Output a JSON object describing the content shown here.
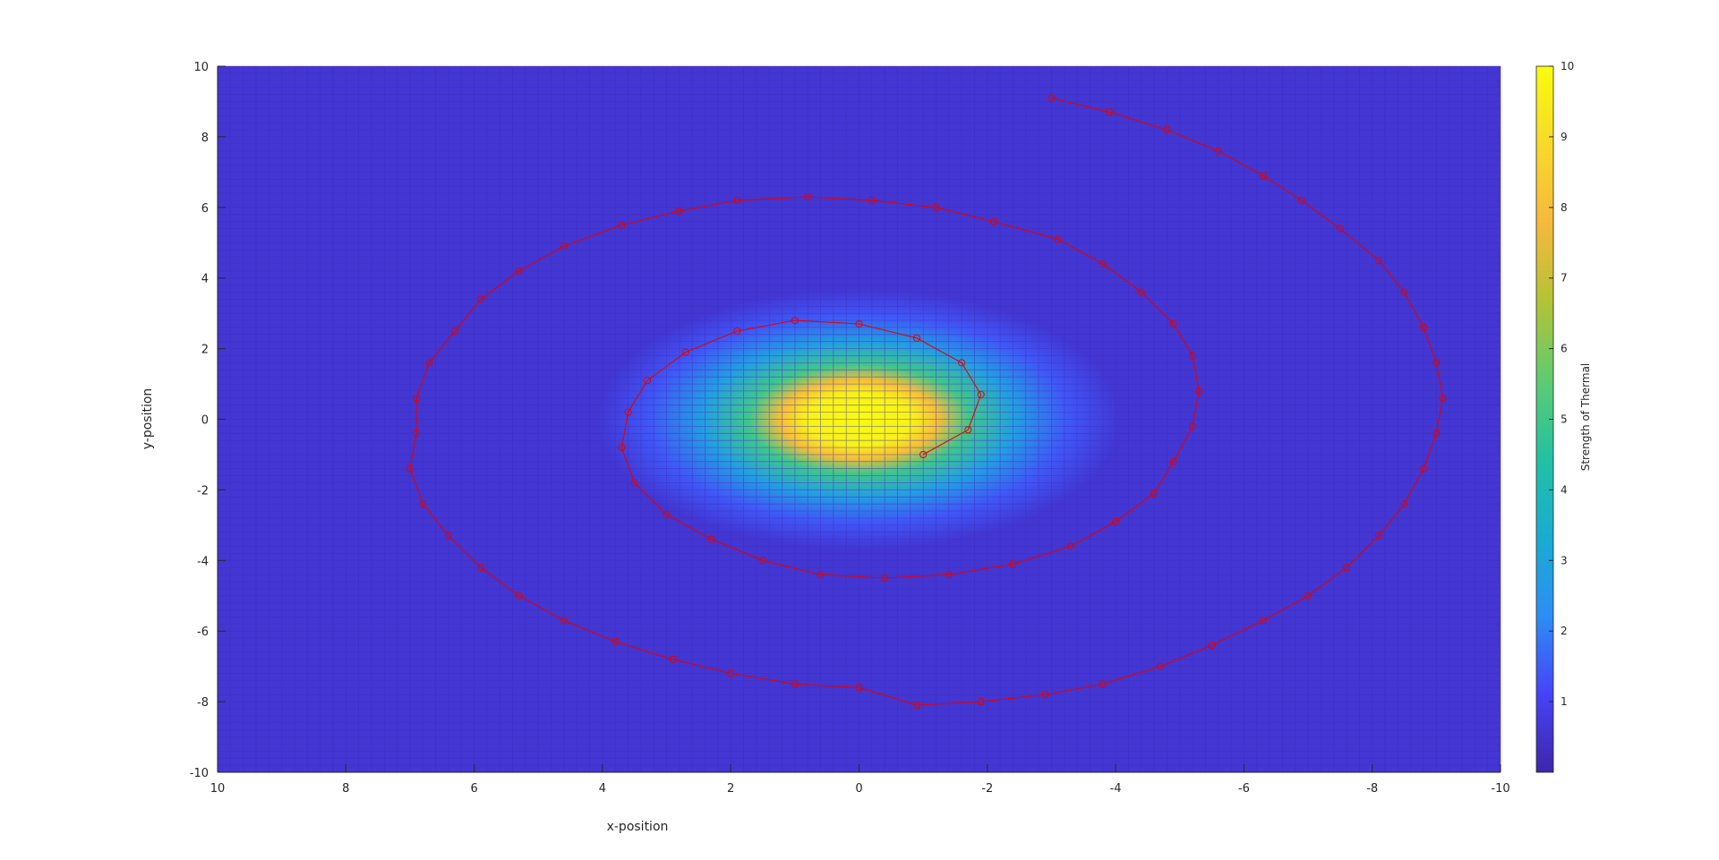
{
  "chart_data": {
    "type": "heatmap",
    "title": "",
    "xlabel": "x-position",
    "ylabel": "y-position",
    "xlim": [
      10,
      -10
    ],
    "ylim": [
      -10,
      10
    ],
    "x_reversed": true,
    "grid": false,
    "x_ticks": [
      "10",
      "8",
      "6",
      "4",
      "2",
      "0",
      "-2",
      "-4",
      "-6",
      "-8",
      "-10"
    ],
    "y_ticks": [
      "10",
      "8",
      "6",
      "4",
      "2",
      "0",
      "-2",
      "-4",
      "-6",
      "-8",
      "-10"
    ],
    "surface": {
      "mesh_spacing": 0.2,
      "peak_value": 10,
      "center": [
        0,
        0
      ],
      "core_radius_x": 1.2,
      "core_radius_y": 1.15
    },
    "colorbar": {
      "label": "Strength of Thermal",
      "min": 0,
      "max": 10,
      "ticks": [
        "10",
        "9",
        "8",
        "7",
        "6",
        "5",
        "4",
        "3",
        "2",
        "1"
      ],
      "placement": "right",
      "colors": [
        "#3e26a8",
        "#4743f8",
        "#2d8ef5",
        "#19acd1",
        "#22c1a3",
        "#5fcb72",
        "#b3c335",
        "#f6b93c",
        "#f8d92a",
        "#f9fb0e"
      ]
    },
    "series": [
      {
        "marker": "circle",
        "color": "#e60000",
        "x": [
          -1.0,
          -1.7,
          -1.9,
          -1.6,
          -0.9,
          0.0,
          1.0,
          1.9,
          2.7,
          3.3,
          3.6,
          3.7,
          3.5,
          3.0,
          2.3,
          1.5,
          0.6,
          -0.4,
          -1.4,
          -2.4,
          -3.3,
          -4.0,
          -4.6,
          -4.9,
          -5.2,
          -5.3,
          -5.2,
          -4.9,
          -4.4,
          -3.8,
          -3.1,
          -2.1,
          -1.2,
          -0.2,
          0.8,
          1.9,
          2.8,
          3.7,
          4.6,
          5.3,
          5.9,
          6.3,
          6.7,
          6.9,
          6.9,
          7.0,
          6.8,
          6.4,
          5.9,
          5.3,
          4.6,
          3.8,
          2.9,
          2.0,
          1.0,
          0.0,
          -0.9,
          -1.9,
          -2.9,
          -3.8,
          -4.7,
          -5.5,
          -6.3,
          -7.0,
          -7.6,
          -8.1,
          -8.5,
          -8.8,
          -9.0,
          -9.1,
          -9.0,
          -8.8,
          -8.5,
          -8.1,
          -7.5,
          -6.9,
          -6.3,
          -5.6,
          -4.8,
          -3.9,
          -3.0
        ],
        "y": [
          -1.0,
          -0.3,
          0.7,
          1.6,
          2.3,
          2.7,
          2.8,
          2.5,
          1.9,
          1.1,
          0.2,
          -0.8,
          -1.8,
          -2.7,
          -3.4,
          -4.0,
          -4.4,
          -4.5,
          -4.4,
          -4.1,
          -3.6,
          -2.9,
          -2.1,
          -1.2,
          -0.2,
          0.8,
          1.8,
          2.7,
          3.6,
          4.4,
          5.1,
          5.6,
          6.0,
          6.2,
          6.3,
          6.2,
          5.9,
          5.5,
          4.9,
          4.2,
          3.4,
          2.5,
          1.6,
          0.6,
          -0.4,
          -1.4,
          -2.4,
          -3.3,
          -4.2,
          -5.0,
          -5.7,
          -6.3,
          -6.8,
          -7.2,
          -7.5,
          -7.6,
          -8.1,
          -8.0,
          -7.8,
          -7.5,
          -7.0,
          -6.4,
          -5.7,
          -5.0,
          -4.2,
          -3.3,
          -2.4,
          -1.4,
          -0.4,
          0.6,
          1.6,
          2.6,
          3.6,
          4.5,
          5.4,
          6.2,
          6.9,
          7.6,
          8.2,
          8.7,
          9.1
        ]
      }
    ]
  }
}
